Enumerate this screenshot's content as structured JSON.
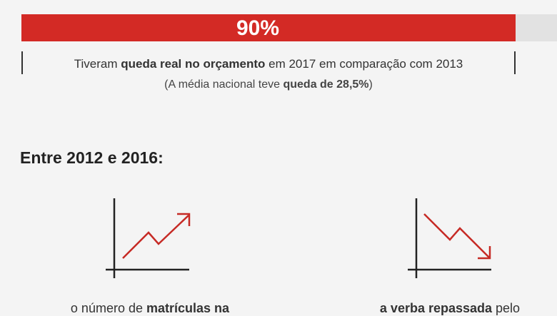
{
  "highlight": {
    "label": "90%",
    "line1": [
      "Tiveram ",
      "queda real no orçamento",
      " em 2017 em comparação com 2013"
    ],
    "line2": [
      "(A média nacional teve ",
      "queda de 28,5%",
      ")"
    ]
  },
  "section_title": "Entre 2012 e 2016:",
  "items": [
    {
      "text": [
        "o número de ",
        "matrículas na"
      ]
    },
    {
      "text": [
        "a verba repassada",
        " pelo"
      ]
    }
  ]
}
